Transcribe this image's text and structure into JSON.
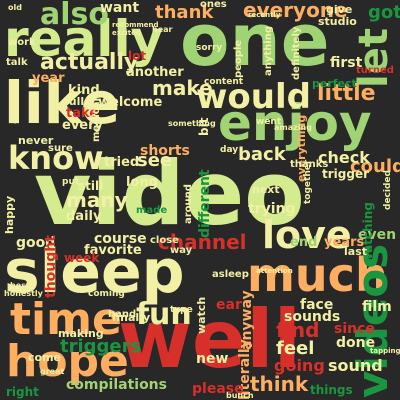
{
  "word_cloud": {
    "background": "#282828",
    "palette": {
      "light_green": "#d4ec8e",
      "green": "#9fd373",
      "dark_green": "#1a9641",
      "yellow": "#f2f0a4",
      "orange": "#fdae61",
      "red": "#d7302a"
    },
    "words": [
      {
        "text": "video",
        "color": "#d4ec8e",
        "orientation": "horizontal"
      },
      {
        "text": "one",
        "color": "#9fd373",
        "orientation": "horizontal"
      },
      {
        "text": "well",
        "color": "#d7302a",
        "orientation": "horizontal"
      },
      {
        "text": "sleep",
        "color": "#f2f0a4",
        "orientation": "horizontal"
      },
      {
        "text": "like",
        "color": "#f2f0a4",
        "orientation": "horizontal"
      },
      {
        "text": "really",
        "color": "#d4ec8e",
        "orientation": "horizontal"
      },
      {
        "text": "much",
        "color": "#fdae61",
        "orientation": "horizontal"
      },
      {
        "text": "enjoy",
        "color": "#9fd373",
        "orientation": "horizontal"
      },
      {
        "text": "time",
        "color": "#fdae61",
        "orientation": "horizontal"
      },
      {
        "text": "hope",
        "color": "#fdae61",
        "orientation": "horizontal"
      },
      {
        "text": "videos",
        "color": "#1a9641",
        "orientation": "vertical"
      },
      {
        "text": "love",
        "color": "#f2f0a4",
        "orientation": "horizontal"
      },
      {
        "text": "would",
        "color": "#f2f0a4",
        "orientation": "horizontal"
      },
      {
        "text": "know",
        "color": "#f2f0a4",
        "orientation": "horizontal"
      },
      {
        "text": "let",
        "color": "#9fd373",
        "orientation": "vertical"
      },
      {
        "text": "also",
        "color": "#9fd373",
        "orientation": "horizontal"
      },
      {
        "text": "fun",
        "color": "#f2f0a4",
        "orientation": "horizontal"
      },
      {
        "text": "actually",
        "color": "#f2f0a4",
        "orientation": "horizontal"
      },
      {
        "text": "everyone",
        "color": "#fdae61",
        "orientation": "horizontal"
      },
      {
        "text": "make",
        "color": "#f2f0a4",
        "orientation": "horizontal"
      },
      {
        "text": "little",
        "color": "#fdae61",
        "orientation": "horizontal"
      },
      {
        "text": "channel",
        "color": "#d7302a",
        "orientation": "horizontal"
      },
      {
        "text": "triggers",
        "color": "#1a9641",
        "orientation": "horizontal"
      },
      {
        "text": "many",
        "color": "#f2f0a4",
        "orientation": "horizontal"
      },
      {
        "text": "think",
        "color": "#fdae61",
        "orientation": "horizontal"
      },
      {
        "text": "back",
        "color": "#f2f0a4",
        "orientation": "horizontal"
      },
      {
        "text": "got",
        "color": "#1a9641",
        "orientation": "horizontal"
      },
      {
        "text": "thank",
        "color": "#fdae61",
        "orientation": "horizontal"
      },
      {
        "text": "want",
        "color": "#f2f0a4",
        "orientation": "horizontal"
      },
      {
        "text": "see",
        "color": "#f2f0a4",
        "orientation": "horizontal"
      },
      {
        "text": "find",
        "color": "#d7302a",
        "orientation": "horizontal"
      },
      {
        "text": "feel",
        "color": "#f2f0a4",
        "orientation": "horizontal"
      },
      {
        "text": "could",
        "color": "#fdae61",
        "orientation": "horizontal"
      },
      {
        "text": "going",
        "color": "#d7302a",
        "orientation": "horizontal"
      },
      {
        "text": "check",
        "color": "#f2f0a4",
        "orientation": "horizontal"
      },
      {
        "text": "sounds",
        "color": "#f2f0a4",
        "orientation": "horizontal"
      },
      {
        "text": "sound",
        "color": "#f2f0a4",
        "orientation": "horizontal"
      },
      {
        "text": "compilations",
        "color": "#9fd373",
        "orientation": "horizontal"
      },
      {
        "text": "literally",
        "color": "#fdae61",
        "orientation": "vertical"
      },
      {
        "text": "face",
        "color": "#f2f0a4",
        "orientation": "horizontal"
      },
      {
        "text": "done",
        "color": "#f2f0a4",
        "orientation": "horizontal"
      },
      {
        "text": "trying",
        "color": "#f2f0a4",
        "orientation": "horizontal"
      },
      {
        "text": "film",
        "color": "#f2f0a4",
        "orientation": "horizontal"
      },
      {
        "text": "since",
        "color": "#d7302a",
        "orientation": "horizontal"
      },
      {
        "text": "new",
        "color": "#f2f0a4",
        "orientation": "horizontal"
      },
      {
        "text": "please",
        "color": "#d7302a",
        "orientation": "horizontal"
      },
      {
        "text": "course",
        "color": "#f2f0a4",
        "orientation": "horizontal"
      },
      {
        "text": "favorite",
        "color": "#f2f0a4",
        "orientation": "horizontal"
      },
      {
        "text": "good",
        "color": "#f2f0a4",
        "orientation": "horizontal"
      },
      {
        "text": "daily",
        "color": "#f2f0a4",
        "orientation": "horizontal"
      },
      {
        "text": "shorts",
        "color": "#fdae61",
        "orientation": "horizontal"
      },
      {
        "text": "long",
        "color": "#f2f0a4",
        "orientation": "horizontal"
      },
      {
        "text": "tried",
        "color": "#f2f0a4",
        "orientation": "horizontal"
      },
      {
        "text": "every",
        "color": "#f2f0a4",
        "orientation": "horizontal"
      },
      {
        "text": "kind",
        "color": "#f2f0a4",
        "orientation": "horizontal"
      },
      {
        "text": "another",
        "color": "#f2f0a4",
        "orientation": "horizontal"
      },
      {
        "text": "anyway",
        "color": "#fdae61",
        "orientation": "vertical"
      },
      {
        "text": "different",
        "color": "#1a9641",
        "orientation": "vertical"
      },
      {
        "text": "thought",
        "color": "#d7302a",
        "orientation": "vertical"
      },
      {
        "text": "take",
        "color": "#d7302a",
        "orientation": "horizontal"
      },
      {
        "text": "welcome",
        "color": "#f2f0a4",
        "orientation": "horizontal"
      },
      {
        "text": "year",
        "color": "#fdae61",
        "orientation": "horizontal"
      },
      {
        "text": "years",
        "color": "#fdae61",
        "orientation": "horizontal"
      },
      {
        "text": "end",
        "color": "#9fd373",
        "orientation": "horizontal"
      },
      {
        "text": "even",
        "color": "#9fd373",
        "orientation": "horizontal"
      },
      {
        "text": "first",
        "color": "#f2f0a4",
        "orientation": "horizontal"
      },
      {
        "text": "perfect",
        "color": "#1a9641",
        "orientation": "horizontal"
      },
      {
        "text": "trigger",
        "color": "#f2f0a4",
        "orientation": "horizontal"
      },
      {
        "text": "watching",
        "color": "#1a9641",
        "orientation": "vertical"
      },
      {
        "text": "making",
        "color": "#f2f0a4",
        "orientation": "horizontal"
      },
      {
        "text": "week",
        "color": "#d7302a",
        "orientation": "horizontal"
      },
      {
        "text": "still",
        "color": "#f2f0a4",
        "orientation": "horizontal"
      },
      {
        "text": "never",
        "color": "#f2f0a4",
        "orientation": "horizontal"
      },
      {
        "text": "always",
        "color": "#f2f0a4",
        "orientation": "vertical"
      },
      {
        "text": "full",
        "color": "#f2f0a4",
        "orientation": "horizontal"
      },
      {
        "text": "give",
        "color": "#f2f0a4",
        "orientation": "horizontal"
      },
      {
        "text": "ones",
        "color": "#f2f0a4",
        "orientation": "horizontal"
      },
      {
        "text": "studio",
        "color": "#f2f0a4",
        "orientation": "horizontal"
      },
      {
        "text": "things",
        "color": "#1a9641",
        "orientation": "horizontal"
      },
      {
        "text": "happy",
        "color": "#f2f0a4",
        "orientation": "vertical"
      },
      {
        "text": "come",
        "color": "#f2f0a4",
        "orientation": "horizontal"
      },
      {
        "text": "right",
        "color": "#1a9641",
        "orientation": "horizontal"
      },
      {
        "text": "next",
        "color": "#f2f0a4",
        "orientation": "horizontal"
      },
      {
        "text": "medical",
        "color": "#f2f0a4",
        "orientation": "vertical"
      },
      {
        "text": "asleep",
        "color": "#f2f0a4",
        "orientation": "horizontal"
      },
      {
        "text": "watch",
        "color": "#f2f0a4",
        "orientation": "vertical"
      },
      {
        "text": "lot",
        "color": "#d7302a",
        "orientation": "horizontal"
      },
      {
        "text": "work",
        "color": "#f2f0a4",
        "orientation": "horizontal"
      },
      {
        "text": "ear",
        "color": "#d7302a",
        "orientation": "horizontal"
      },
      {
        "text": "bit",
        "color": "#f2f0a4",
        "orientation": "vertical"
      },
      {
        "text": "close",
        "color": "#f2f0a4",
        "orientation": "horizontal"
      },
      {
        "text": "way",
        "color": "#f2f0a4",
        "orientation": "horizontal"
      },
      {
        "text": "last",
        "color": "#f2f0a4",
        "orientation": "horizontal"
      },
      {
        "text": "finally",
        "color": "#f2f0a4",
        "orientation": "horizontal"
      },
      {
        "text": "sure",
        "color": "#f2f0a4",
        "orientation": "horizontal"
      },
      {
        "text": "hand",
        "color": "#f2f0a4",
        "orientation": "horizontal"
      },
      {
        "text": "talk",
        "color": "#f2f0a4",
        "orientation": "horizontal"
      },
      {
        "text": "turned",
        "color": "#d7302a",
        "orientation": "horizontal"
      },
      {
        "text": "people",
        "color": "#f2f0a4",
        "orientation": "vertical"
      },
      {
        "text": "anything",
        "color": "#f2f0a4",
        "orientation": "vertical"
      },
      {
        "text": "definitely",
        "color": "#f2f0a4",
        "orientation": "vertical"
      },
      {
        "text": "everything",
        "color": "#fdae61",
        "orientation": "vertical"
      },
      {
        "text": "something",
        "color": "#f2f0a4",
        "orientation": "horizontal"
      },
      {
        "text": "content",
        "color": "#f2f0a4",
        "orientation": "horizontal"
      },
      {
        "text": "sorry",
        "color": "#f2f0a4",
        "orientation": "horizontal"
      },
      {
        "text": "went",
        "color": "#f2f0a4",
        "orientation": "horizontal"
      },
      {
        "text": "around",
        "color": "#f2f0a4",
        "orientation": "vertical"
      },
      {
        "text": "thanks",
        "color": "#f2f0a4",
        "orientation": "horizontal"
      },
      {
        "text": "together",
        "color": "#f2f0a4",
        "orientation": "vertical"
      },
      {
        "text": "decided",
        "color": "#f2f0a4",
        "orientation": "vertical"
      },
      {
        "text": "coming",
        "color": "#f2f0a4",
        "orientation": "horizontal"
      },
      {
        "text": "made",
        "color": "#1a9641",
        "orientation": "horizontal"
      },
      {
        "text": "type",
        "color": "#f2f0a4",
        "orientation": "horizontal"
      },
      {
        "text": "put",
        "color": "#f2f0a4",
        "orientation": "horizontal"
      },
      {
        "text": "old",
        "color": "#f2f0a4",
        "orientation": "horizontal"
      },
      {
        "text": "day",
        "color": "#f2f0a4",
        "orientation": "horizontal"
      },
      {
        "text": "honestly",
        "color": "#f2f0a4",
        "orientation": "horizontal"
      },
      {
        "text": "best",
        "color": "#f2f0a4",
        "orientation": "horizontal"
      },
      {
        "text": "great",
        "color": "#f2f0a4",
        "orientation": "horizontal"
      },
      {
        "text": "bunch",
        "color": "#f2f0a4",
        "orientation": "horizontal"
      },
      {
        "text": "recommend",
        "color": "#f2f0a4",
        "orientation": "horizontal"
      },
      {
        "text": "excited",
        "color": "#f2f0a4",
        "orientation": "horizontal"
      },
      {
        "text": "hear",
        "color": "#f2f0a4",
        "orientation": "horizontal"
      },
      {
        "text": "amazing",
        "color": "#f2f0a4",
        "orientation": "horizontal"
      },
      {
        "text": "tapping",
        "color": "#f2f0a4",
        "orientation": "horizontal"
      },
      {
        "text": "attention",
        "color": "#f2f0a4",
        "orientation": "horizontal"
      },
      {
        "text": "recently",
        "color": "#f2f0a4",
        "orientation": "horizontal"
      }
    ]
  }
}
